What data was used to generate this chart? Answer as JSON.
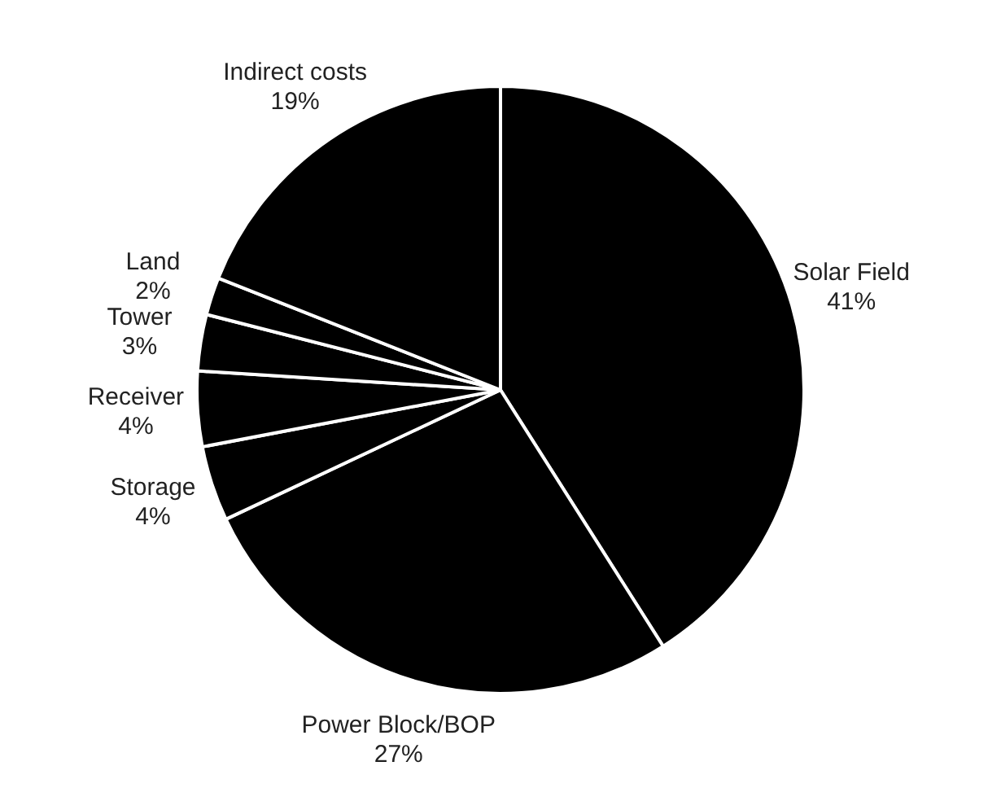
{
  "chart_data": {
    "type": "pie",
    "categories": [
      "Solar Field",
      "Power Block/BOP",
      "Storage",
      "Receiver",
      "Tower",
      "Land",
      "Indirect costs"
    ],
    "values": [
      41,
      27,
      4,
      4,
      3,
      2,
      19
    ],
    "value_labels": [
      "41%",
      "27%",
      "4%",
      "4%",
      "3%",
      "2%",
      "19%"
    ],
    "colors": [
      "#000000",
      "#000000",
      "#000000",
      "#000000",
      "#000000",
      "#000000",
      "#000000"
    ],
    "legend": false
  }
}
